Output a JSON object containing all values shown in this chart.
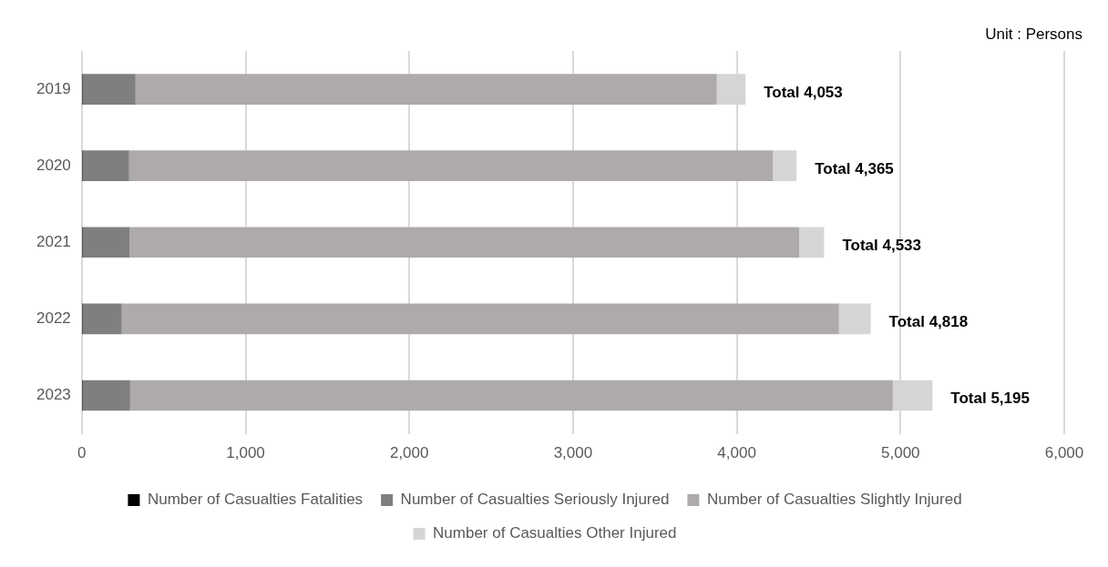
{
  "chart_data": {
    "type": "bar",
    "orientation": "horizontal",
    "stacked": true,
    "categories": [
      "2019",
      "2020",
      "2021",
      "2022",
      "2023"
    ],
    "series": [
      {
        "name": "Number of Casualties Fatalities",
        "color": "#000000",
        "values": [
          3,
          3,
          3,
          3,
          3
        ]
      },
      {
        "name": "Number of Casualties Seriously Injured",
        "color": "#7f7f7f",
        "values": [
          325,
          286,
          290,
          241,
          292
        ]
      },
      {
        "name": "Number of Casualties Slightly Injured",
        "color": "#aeaaaa",
        "values": [
          3550,
          3931,
          4088,
          4380,
          4658
        ]
      },
      {
        "name": "Number of Casualties Other Injured",
        "color": "#d5d5d5",
        "values": [
          175,
          145,
          152,
          194,
          242
        ]
      }
    ],
    "totals": [
      "Total 4,053",
      "Total 4,365",
      "Total 4,533",
      "Total 4,818",
      "Total 5,195"
    ],
    "xlim": [
      0,
      6000
    ],
    "xticks": [
      0,
      {
        "value": 1000,
        "label": "1,000"
      },
      {
        "value": 2000,
        "label": "2,000"
      },
      {
        "value": 3000,
        "label": "3,000"
      },
      {
        "value": 4000,
        "label": "4,000"
      },
      {
        "value": 5000,
        "label": "5,000"
      },
      {
        "value": 6000,
        "label": "6,000"
      }
    ],
    "grid": "x",
    "legend": "bottom",
    "annotations": [
      "Unit : Persons"
    ]
  }
}
